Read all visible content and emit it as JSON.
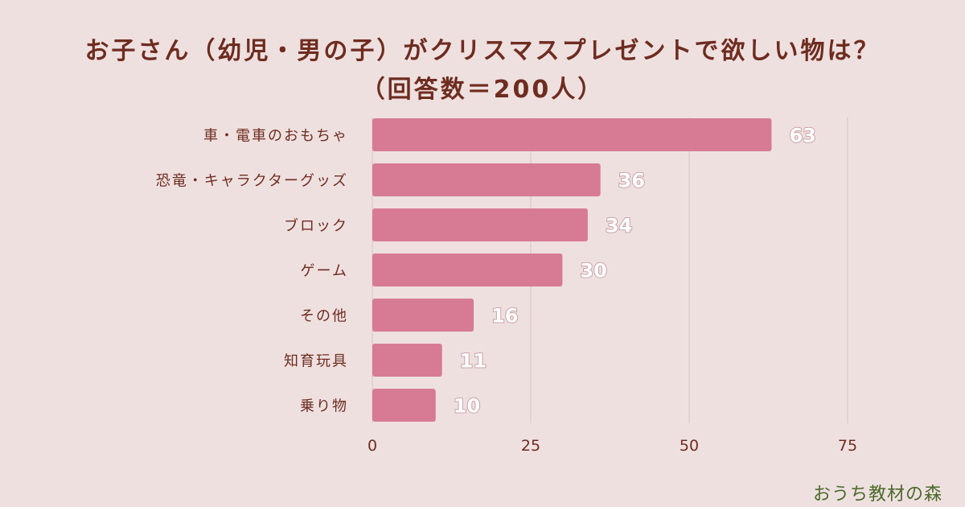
{
  "chart_data": {
    "type": "bar",
    "orientation": "horizontal",
    "title": "お子さん（幼児・男の子）がクリスマスプレゼントで欲しい物は？",
    "subtitle": "（回答数＝200人）",
    "categories": [
      "車・電車のおもちゃ",
      "恐竜・キャラクターグッズ",
      "ブロック",
      "ゲーム",
      "その他",
      "知育玩具",
      "乗り物"
    ],
    "values": [
      63,
      36,
      34,
      30,
      16,
      11,
      10
    ],
    "xticks": [
      0,
      25,
      50,
      75
    ],
    "xlim": [
      0,
      75
    ],
    "grid": true,
    "bar_color": "#d67b93",
    "xlabel": "",
    "ylabel": ""
  },
  "watermark": "おうち教材の森",
  "colors": {
    "background": "#efe0e0",
    "title": "#6e2c1f",
    "grid": "#d9c4c4",
    "value_label": "#ffffff"
  }
}
